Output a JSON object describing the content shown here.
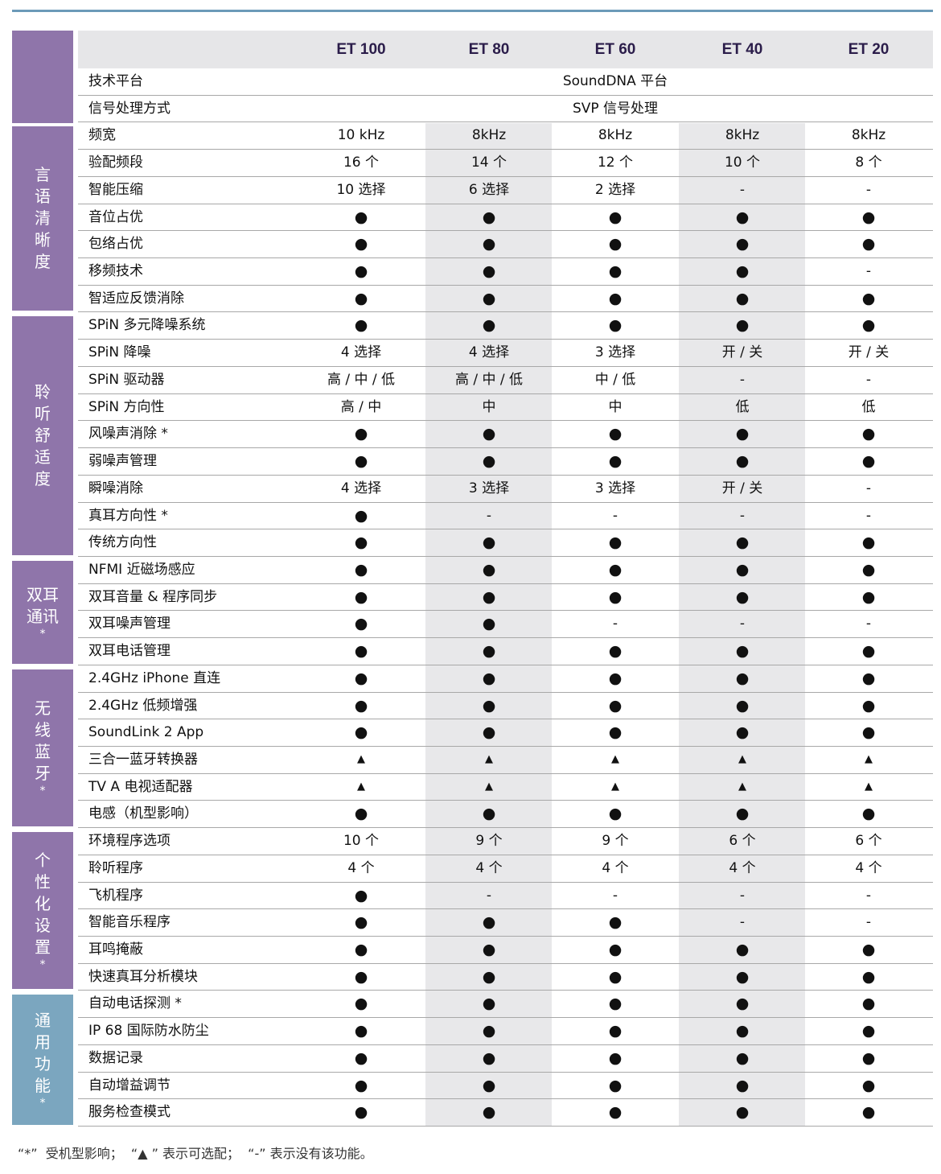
{
  "colors": {
    "purple": "#8f75aa",
    "blue": "#7ba6bf",
    "header_text": "#2b1d4a"
  },
  "models": [
    "ET 100",
    "ET 80",
    "ET 60",
    "ET 40",
    "ET 20"
  ],
  "spanning_rows": [
    {
      "label": "技术平台",
      "value": "SoundDNA 平台"
    },
    {
      "label": "信号处理方式",
      "value": "SVP 信号处理"
    }
  ],
  "groups": [
    {
      "label_lines": [
        "言",
        "语",
        "清",
        "晰",
        "度"
      ],
      "color": "purple",
      "rows": [
        {
          "label": "频宽",
          "values": [
            "10 kHz",
            "8kHz",
            "8kHz",
            "8kHz",
            "8kHz"
          ]
        },
        {
          "label": "验配频段",
          "values": [
            "16 个",
            "14 个",
            "12 个",
            "10 个",
            "8 个"
          ]
        },
        {
          "label": "智能压缩",
          "values": [
            "10 选择",
            "6 选择",
            "2 选择",
            "-",
            "-"
          ]
        },
        {
          "label": "音位占优",
          "values": [
            "●",
            "●",
            "●",
            "●",
            "●"
          ]
        },
        {
          "label": "包络占优",
          "values": [
            "●",
            "●",
            "●",
            "●",
            "●"
          ]
        },
        {
          "label": "移频技术",
          "values": [
            "●",
            "●",
            "●",
            "●",
            "-"
          ]
        },
        {
          "label": "智适应反馈消除",
          "values": [
            "●",
            "●",
            "●",
            "●",
            "●"
          ]
        }
      ]
    },
    {
      "label_lines": [
        "聆",
        "听",
        "舒",
        "适",
        "度"
      ],
      "color": "purple",
      "rows": [
        {
          "label": "SPiN 多元降噪系统",
          "values": [
            "●",
            "●",
            "●",
            "●",
            "●"
          ]
        },
        {
          "label": "SPiN 降噪",
          "values": [
            "4 选择",
            "4 选择",
            "3 选择",
            "开 / 关",
            "开 / 关"
          ]
        },
        {
          "label": "SPiN 驱动器",
          "values": [
            "高 / 中 / 低",
            "高 / 中 / 低",
            "中 / 低",
            "-",
            "-"
          ]
        },
        {
          "label": "SPiN 方向性",
          "values": [
            "高 / 中",
            "中",
            "中",
            "低",
            "低"
          ]
        },
        {
          "label": "风噪声消除 *",
          "values": [
            "●",
            "●",
            "●",
            "●",
            "●"
          ]
        },
        {
          "label": "弱噪声管理",
          "values": [
            "●",
            "●",
            "●",
            "●",
            "●"
          ]
        },
        {
          "label": "瞬噪消除",
          "values": [
            "4 选择",
            "3 选择",
            "3 选择",
            "开 / 关",
            "-"
          ]
        },
        {
          "label": "真耳方向性 *",
          "values": [
            "●",
            "-",
            "-",
            "-",
            "-"
          ]
        },
        {
          "label": "传统方向性",
          "values": [
            "●",
            "●",
            "●",
            "●",
            "●"
          ]
        }
      ]
    },
    {
      "label_lines": [
        "双耳",
        "通讯",
        "*"
      ],
      "color": "purple",
      "rows": [
        {
          "label": "NFMI 近磁场感应",
          "values": [
            "●",
            "●",
            "●",
            "●",
            "●"
          ]
        },
        {
          "label": "双耳音量 & 程序同步",
          "values": [
            "●",
            "●",
            "●",
            "●",
            "●"
          ]
        },
        {
          "label": "双耳噪声管理",
          "values": [
            "●",
            "●",
            "-",
            "-",
            "-"
          ]
        },
        {
          "label": "双耳电话管理",
          "values": [
            "●",
            "●",
            "●",
            "●",
            "●"
          ]
        }
      ]
    },
    {
      "label_lines": [
        "无",
        "线",
        "蓝",
        "牙",
        "*"
      ],
      "color": "purple",
      "rows": [
        {
          "label": "2.4GHz iPhone 直连",
          "values": [
            "●",
            "●",
            "●",
            "●",
            "●"
          ]
        },
        {
          "label": "2.4GHz 低频增强",
          "values": [
            "●",
            "●",
            "●",
            "●",
            "●"
          ]
        },
        {
          "label": "SoundLink 2 App",
          "values": [
            "●",
            "●",
            "●",
            "●",
            "●"
          ]
        },
        {
          "label": "三合一蓝牙转换器",
          "values": [
            "▲",
            "▲",
            "▲",
            "▲",
            "▲"
          ]
        },
        {
          "label": "TV A 电视适配器",
          "values": [
            "▲",
            "▲",
            "▲",
            "▲",
            "▲"
          ]
        },
        {
          "label": "电感（机型影响）",
          "values": [
            "●",
            "●",
            "●",
            "●",
            "●"
          ]
        }
      ]
    },
    {
      "label_lines": [
        "个",
        "性",
        "化",
        "设",
        "置",
        "*"
      ],
      "color": "purple",
      "rows": [
        {
          "label": "环境程序选项",
          "values": [
            "10 个",
            "9 个",
            "9 个",
            "6 个",
            "6 个"
          ]
        },
        {
          "label": "聆听程序",
          "values": [
            "4 个",
            "4 个",
            "4 个",
            "4 个",
            "4 个"
          ]
        },
        {
          "label": "飞机程序",
          "values": [
            "●",
            "-",
            "-",
            "-",
            "-"
          ]
        },
        {
          "label": "智能音乐程序",
          "values": [
            "●",
            "●",
            "●",
            "-",
            "-"
          ]
        },
        {
          "label": "耳鸣掩蔽",
          "values": [
            "●",
            "●",
            "●",
            "●",
            "●"
          ]
        },
        {
          "label": "快速真耳分析模块",
          "values": [
            "●",
            "●",
            "●",
            "●",
            "●"
          ]
        }
      ]
    },
    {
      "label_lines": [
        "通",
        "用",
        "功",
        "能",
        "*"
      ],
      "color": "blue",
      "rows": [
        {
          "label": "自动电话探测 *",
          "values": [
            "●",
            "●",
            "●",
            "●",
            "●"
          ]
        },
        {
          "label": "IP 68 国际防水防尘",
          "values": [
            "●",
            "●",
            "●",
            "●",
            "●"
          ]
        },
        {
          "label": "数据记录",
          "values": [
            "●",
            "●",
            "●",
            "●",
            "●"
          ]
        },
        {
          "label": "自动增益调节",
          "values": [
            "●",
            "●",
            "●",
            "●",
            "●"
          ]
        },
        {
          "label": "服务检查模式",
          "values": [
            "●",
            "●",
            "●",
            "●",
            "●"
          ]
        }
      ]
    }
  ],
  "footnote": "“*”  受机型影响；  “▲ ” 表示可选配；  “-” 表示没有该功能。"
}
